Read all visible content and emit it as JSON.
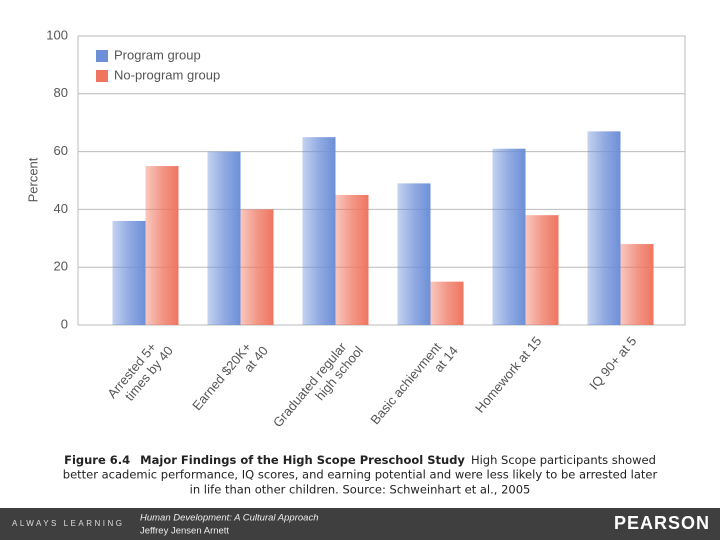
{
  "chart_data": {
    "type": "bar",
    "y_label": "Percent",
    "categories": [
      [
        "Arrested 5+",
        "times by 40"
      ],
      [
        "Earned $20K+",
        "at 40"
      ],
      [
        "Graduated regular",
        "high school"
      ],
      [
        "Basic achievment",
        "at 14"
      ],
      [
        "Homework at 15"
      ],
      [
        "IQ 90+ at 5"
      ]
    ],
    "series": [
      {
        "name": "Program group",
        "color": "#6d8fd8",
        "values": [
          36,
          60,
          65,
          49,
          61,
          67
        ]
      },
      {
        "name": "No-program group",
        "color": "#ef7560",
        "values": [
          55,
          40,
          45,
          15,
          38,
          28
        ]
      }
    ],
    "ylim": [
      0,
      100
    ],
    "yticks": [
      0,
      20,
      40,
      60,
      80,
      100
    ],
    "grid": true,
    "legend": "top-left"
  },
  "caption": {
    "label": "Figure 6.4",
    "title": "Major Findings of the High Scope Preschool Study",
    "lines": [
      "High Scope participants showed",
      "better academic performance, IQ scores, and earning potential and were less likely to be arrested later",
      "in life than other children. Source: Schweinhart et al., 2005"
    ]
  },
  "footer": {
    "tagline": "ALWAYS LEARNING",
    "book": "Human Development: A Cultural Approach",
    "author": "Jeffrey Jensen Arnett",
    "brand": "PEARSON"
  }
}
